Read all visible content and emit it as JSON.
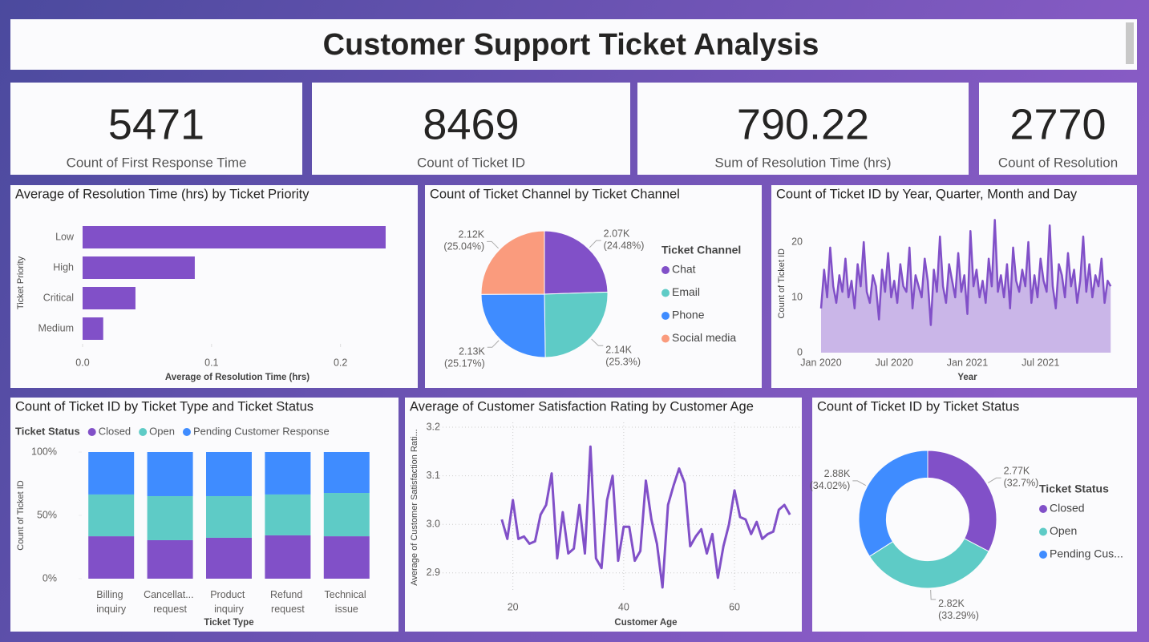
{
  "title": "Customer Support Ticket Analysis",
  "kpis": [
    {
      "value": 5471,
      "label": "Count of First Response Time"
    },
    {
      "value": 8469,
      "label": "Count of Ticket ID"
    },
    {
      "value": 790.22,
      "label": "Sum of Resolution Time (hrs)"
    },
    {
      "value": 2770,
      "label": "Count of Resolution"
    }
  ],
  "chart_data": [
    {
      "type": "bar",
      "orientation": "horizontal",
      "title": "Average of Resolution Time (hrs) by Ticket Priority",
      "categories": [
        "Low",
        "High",
        "Critical",
        "Medium"
      ],
      "values": [
        0.235,
        0.087,
        0.041,
        0.016
      ],
      "color": "#8150c8",
      "xlim": [
        0,
        0.24
      ],
      "xticks": [
        {
          "value": 0,
          "label": "0.0"
        },
        0.1,
        0.2
      ],
      "xlabel": "Average of Resolution Time (hrs)",
      "ylabel": "Ticket Priority"
    },
    {
      "type": "pie",
      "title": "Count of Ticket Channel by Ticket Channel",
      "legend_title": "Ticket Channel",
      "legend": "right",
      "categories": [
        "Chat",
        "Email",
        "Phone",
        "Social media"
      ],
      "values": [
        2073,
        2143,
        2132,
        2121
      ],
      "value_labels": [
        "2.07K",
        "2.14K",
        "2.13K",
        "2.12K"
      ],
      "percent_labels": [
        "(24.48%)",
        "(25.3%)",
        "(25.17%)",
        "(25.04%)"
      ],
      "colors": [
        "#8150c8",
        "#5ecbc6",
        "#3f8cff",
        "#fa9b7d"
      ]
    },
    {
      "type": "line",
      "area": true,
      "title": "Count of Ticket ID by Year, Quarter, Month and Day",
      "color": "#8150c8",
      "x": [
        0,
        0.25,
        0.5,
        0.75,
        1,
        1.25,
        1.5,
        1.75,
        2,
        2.25,
        2.5,
        2.75,
        3,
        3.25,
        3.5,
        3.75,
        4,
        4.25,
        4.5,
        4.75,
        5,
        5.25,
        5.5,
        5.75,
        6,
        6.25,
        6.5,
        6.75,
        7,
        7.25,
        7.5,
        7.75,
        8,
        8.25,
        8.5,
        8.75,
        9,
        9.25,
        9.5,
        9.75,
        10,
        10.25,
        10.5,
        10.75,
        11,
        11.25,
        11.5,
        11.75,
        12,
        12.25,
        12.5,
        12.75,
        13,
        13.25,
        13.5,
        13.75,
        14,
        14.25,
        14.5,
        14.75,
        15,
        15.25,
        15.5,
        15.75,
        16,
        16.25,
        16.5,
        16.75,
        17,
        17.25,
        17.5,
        17.75,
        18,
        18.25,
        18.5,
        18.75,
        19,
        19.25,
        19.5,
        19.75,
        20,
        20.25,
        20.5,
        20.75,
        21,
        21.25,
        21.5,
        21.75,
        22,
        22.25,
        22.5,
        22.75,
        23,
        23.25,
        23.5,
        23.75
      ],
      "values": [
        8,
        15,
        10,
        19,
        12,
        9,
        14,
        11,
        17,
        10,
        13,
        8,
        16,
        12,
        20,
        11,
        9,
        14,
        12,
        6,
        15,
        11,
        18,
        10,
        13,
        9,
        16,
        12,
        11,
        19,
        8,
        14,
        12,
        10,
        17,
        13,
        5,
        15,
        11,
        21,
        12,
        9,
        16,
        13,
        10,
        18,
        11,
        14,
        7,
        22,
        12,
        15,
        10,
        13,
        9,
        17,
        12,
        24,
        11,
        14,
        10,
        16,
        8,
        19,
        13,
        11,
        15,
        12,
        20,
        9,
        14,
        10,
        17,
        13,
        11,
        23,
        12,
        8,
        16,
        14,
        10,
        18,
        12,
        15,
        9,
        13,
        21,
        11,
        16,
        10,
        14,
        12,
        17,
        9,
        13,
        12
      ],
      "xlim": [
        0,
        24
      ],
      "xticks": [
        {
          "value": 0,
          "label": "Jan 2020"
        },
        {
          "value": 6,
          "label": "Jul 2020"
        },
        {
          "value": 12,
          "label": "Jan 2021"
        },
        {
          "value": 18,
          "label": "Jul 2021"
        }
      ],
      "ylim": [
        0,
        25
      ],
      "yticks": [
        0,
        10,
        20
      ],
      "xlabel": "Year",
      "ylabel": "Count of Ticket ID"
    },
    {
      "type": "stacked_bar",
      "title": "Count of Ticket ID by Ticket Type and Ticket Status",
      "legend_title": "Ticket Status",
      "legend": "top",
      "categories": [
        "Billing inquiry",
        "Cancellat... request",
        "Product inquiry",
        "Refund request",
        "Technical issue"
      ],
      "series": [
        {
          "name": "Closed",
          "color": "#8150c8",
          "values": [
            33.5,
            30.4,
            32.3,
            34.2,
            33.5
          ]
        },
        {
          "name": "Open",
          "color": "#5ecbc6",
          "values": [
            33,
            34.8,
            32.9,
            32.3,
            34.2
          ]
        },
        {
          "name": "Pending Customer Response",
          "color": "#3f8cff",
          "values": [
            33.5,
            34.8,
            34.8,
            33.5,
            32.3
          ]
        }
      ],
      "ylim": [
        0,
        100
      ],
      "yticks": [
        {
          "value": 0,
          "label": "0%"
        },
        {
          "value": 50,
          "label": "50%"
        },
        {
          "value": 100,
          "label": "100%"
        }
      ],
      "xlabel": "Ticket Type",
      "ylabel": "Count of Ticket ID"
    },
    {
      "type": "line",
      "title": "Average of Customer Satisfaction Rating by Customer Age",
      "color": "#8150c8",
      "grid": true,
      "x": [
        18,
        19,
        20,
        21,
        22,
        23,
        24,
        25,
        26,
        27,
        28,
        29,
        30,
        31,
        32,
        33,
        34,
        35,
        36,
        37,
        38,
        39,
        40,
        41,
        42,
        43,
        44,
        45,
        46,
        47,
        48,
        49,
        50,
        51,
        52,
        53,
        54,
        55,
        56,
        57,
        58,
        59,
        60,
        61,
        62,
        63,
        64,
        65,
        66,
        67,
        68,
        69,
        70
      ],
      "values": [
        3.01,
        2.97,
        3.05,
        2.97,
        2.975,
        2.96,
        2.965,
        3.02,
        3.04,
        3.105,
        2.93,
        3.025,
        2.94,
        2.95,
        3.04,
        2.94,
        3.16,
        2.93,
        2.91,
        3.05,
        3.1,
        2.925,
        2.995,
        2.995,
        2.925,
        2.945,
        3.09,
        3.01,
        2.96,
        2.87,
        3.04,
        3.08,
        3.115,
        3.085,
        2.955,
        2.975,
        2.99,
        2.94,
        2.98,
        2.89,
        2.955,
        3.0,
        3.07,
        3.015,
        3.01,
        2.98,
        3.005,
        2.97,
        2.98,
        2.985,
        3.03,
        3.04,
        3.02
      ],
      "xlim": [
        16,
        72
      ],
      "xticks": [
        20,
        40,
        60
      ],
      "ylim": [
        2.86,
        3.21
      ],
      "yticks": [
        2.9,
        {
          "value": 3,
          "label": "3.0"
        },
        3.1,
        3.2
      ],
      "xlabel": "Customer Age",
      "ylabel": "Average of Customer Satisfaction Rati..."
    },
    {
      "type": "pie",
      "hole": 0.6,
      "title": "Count of Ticket ID by Ticket Status",
      "legend_title": "Ticket Status",
      "legend": "right",
      "categories": [
        "Closed",
        "Open",
        "Pending Cus..."
      ],
      "values": [
        2769,
        2819,
        2881
      ],
      "value_labels": [
        "2.77K",
        "2.82K",
        "2.88K"
      ],
      "percent_labels": [
        "(32.7%)",
        "(33.29%)",
        "(34.02%)"
      ],
      "colors": [
        "#8150c8",
        "#5ecbc6",
        "#3f8cff"
      ]
    }
  ]
}
